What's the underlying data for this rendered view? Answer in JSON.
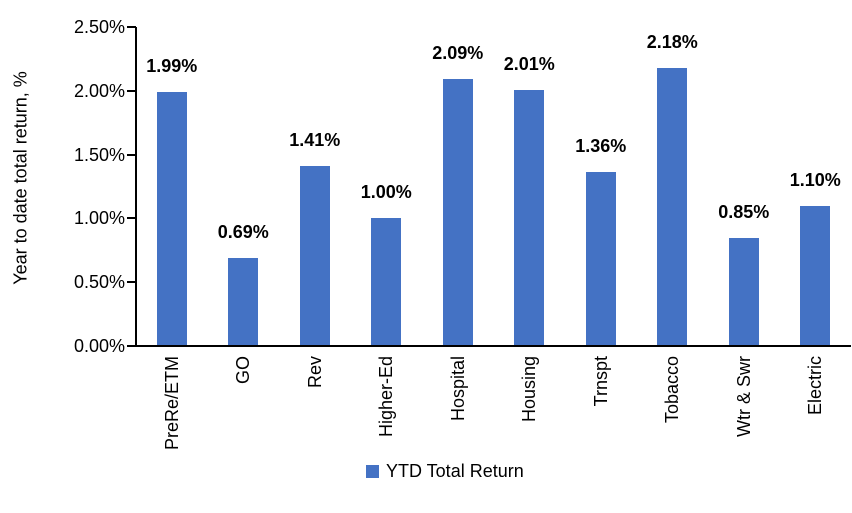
{
  "chart_data": {
    "type": "bar",
    "title": "",
    "categories": [
      "PreRe/ETM",
      "GO",
      "Rev",
      "Higher-Ed",
      "Hospital",
      "Housing",
      "Trnspt",
      "Tobacco",
      "Wtr & Swr",
      "Electric"
    ],
    "values": [
      1.99,
      0.69,
      1.41,
      1.0,
      2.09,
      2.01,
      1.36,
      2.18,
      0.85,
      1.1
    ],
    "value_labels": [
      "1.99%",
      "0.69%",
      "1.41%",
      "1.00%",
      "2.09%",
      "2.01%",
      "1.36%",
      "2.18%",
      "0.85%",
      "1.10%"
    ],
    "xlabel": "",
    "ylabel": "Year to date total return, %",
    "ylim": [
      0,
      2.5
    ],
    "ytick_values": [
      0.0,
      0.5,
      1.0,
      1.5,
      2.0,
      2.5
    ],
    "ytick_labels": [
      "0.00%",
      "0.50%",
      "1.00%",
      "1.50%",
      "2.00%",
      "2.50%"
    ],
    "grid": false,
    "legend_position": "bottom",
    "legend": [
      {
        "label": "YTD Total Return",
        "color": "#4472C4"
      }
    ],
    "bar_color": "#4472C4",
    "axis_color": "#000000",
    "text_color": "#000000"
  }
}
